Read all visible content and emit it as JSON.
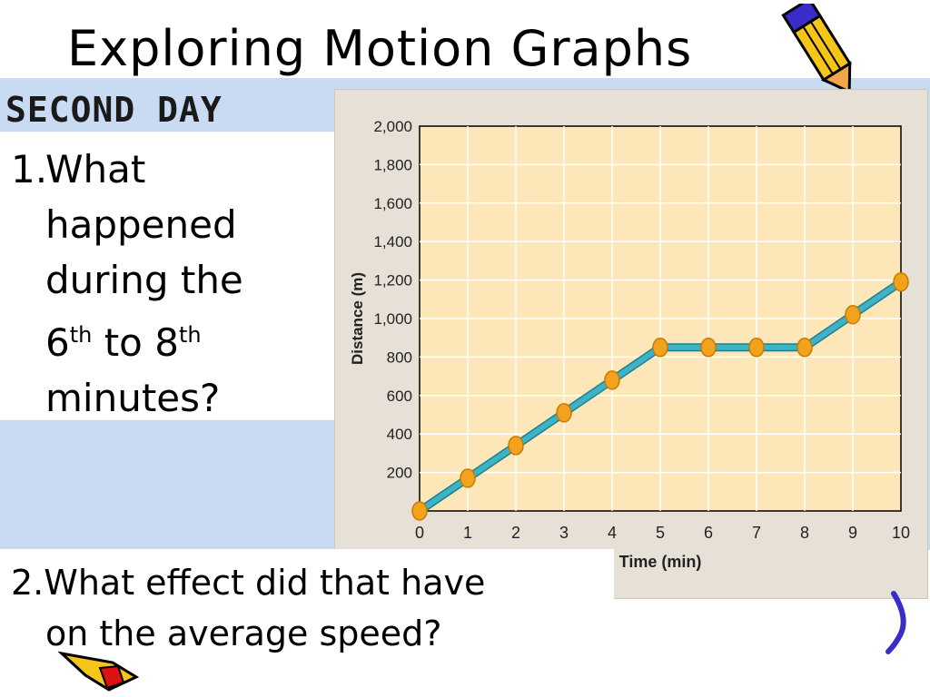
{
  "slide": {
    "title": "Exploring Motion Graphs",
    "day_label": "SECOND DAY",
    "question1": {
      "number": "1.",
      "line1": "What",
      "line2": "happened",
      "line3": "during the",
      "line4_pre": "6",
      "line4_sup1": "th",
      "line4_mid": " to 8",
      "line4_sup2": "th",
      "line5": "minutes?"
    },
    "question2": {
      "line1": "2.What effect did that have",
      "line2": "on the average speed?"
    }
  },
  "colors": {
    "band": "#c9dbf2",
    "plot_background": "#fde7b8",
    "line": "#3fb3c6",
    "marker": "#f3a21c"
  },
  "chart_data": {
    "type": "line",
    "xlabel": "Time (min)",
    "ylabel": "Distance (m)",
    "xlim": [
      0,
      10
    ],
    "ylim": [
      0,
      2000
    ],
    "x_ticks": [
      "0",
      "1",
      "2",
      "3",
      "4",
      "5",
      "6",
      "7",
      "8",
      "9",
      "10"
    ],
    "y_ticks": [
      "200",
      "400",
      "600",
      "800",
      "1,000",
      "1,200",
      "1,400",
      "1,600",
      "1,800",
      "2,000"
    ],
    "grid": true,
    "series": [
      {
        "x": [
          0,
          1,
          2,
          3,
          4,
          5,
          6,
          7,
          8,
          9,
          10
        ],
        "y": [
          0,
          170,
          340,
          510,
          680,
          850,
          850,
          850,
          850,
          1020,
          1190
        ]
      }
    ]
  }
}
